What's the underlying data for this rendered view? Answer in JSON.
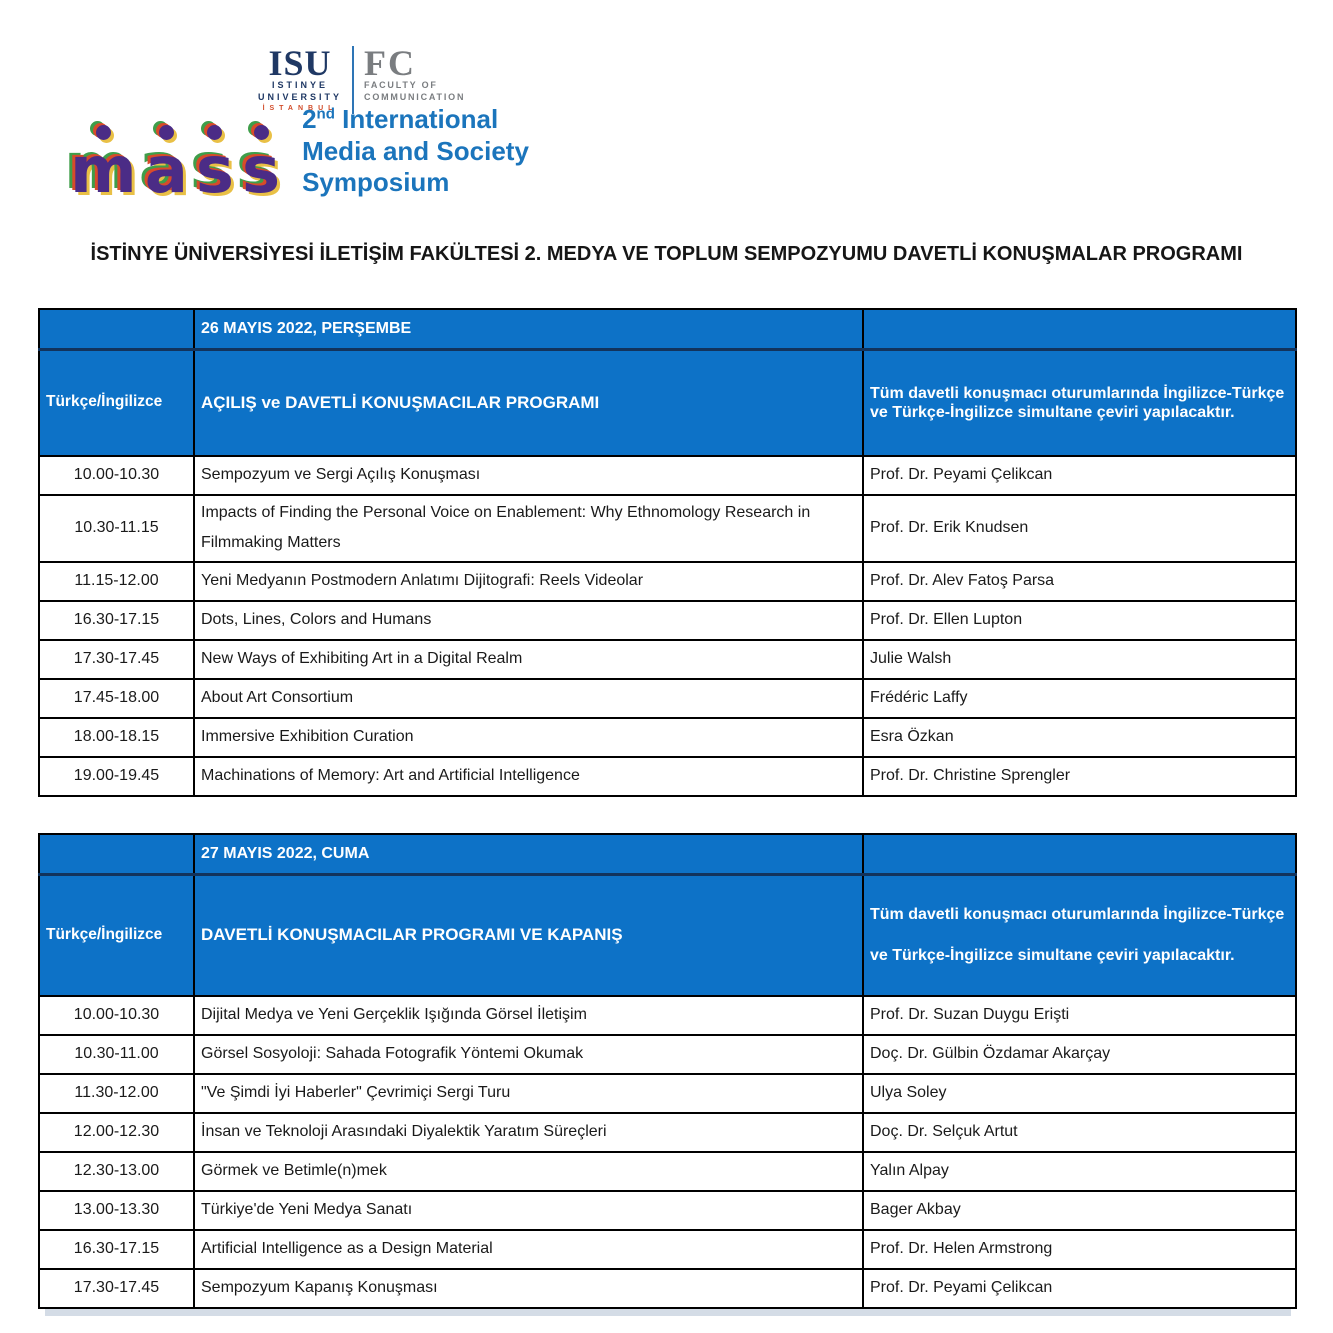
{
  "colors": {
    "table_header_blue": "#0d72c7",
    "header_divider_navy": "#12335c",
    "brand_purple": "#4b2c86",
    "brand_red": "#d84b2a",
    "brand_green": "#3f9e4a",
    "brand_yellow": "#e9c046",
    "symposium_blue": "#1b75bc",
    "isu_navy": "#1f3864",
    "fc_gray": "#7a7d80",
    "istanbul_red": "#d14b28"
  },
  "header": {
    "isu": {
      "acronym": "ISU",
      "line1": "ISTINYE",
      "line2": "UNIVERSITY",
      "line3": "İSTANBUL"
    },
    "fc": {
      "acronym": "FC",
      "line1": "FACULTY OF",
      "line2": "COMMUNICATION"
    },
    "mass_letters": [
      "m",
      "a",
      "s",
      "s"
    ],
    "symposium": {
      "ordinal": "2",
      "ordinal_suffix": "nd",
      "line1_rest": " International",
      "line2": "Media and Society",
      "line3": "Symposium"
    }
  },
  "title": "İSTİNYE ÜNİVERSİYESİ İLETİŞİM FAKÜLTESİ 2. MEDYA VE TOPLUM SEMPOZYUMU DAVETLİ KONUŞMALAR PROGRAMI",
  "tables": [
    {
      "date_header": "26 MAYIS 2022, PERŞEMBE",
      "language_label": "Türkçe/İngilizce",
      "program_label": "AÇILIŞ ve DAVETLİ KONUŞMACILAR PROGRAMI",
      "note": "Tüm davetli konuşmacı oturumlarında İngilizce-Türkçe ve Türkçe-İngilizce simultane çeviri yapılacaktır.",
      "rows": [
        {
          "time": "10.00-10.30",
          "session": "Sempozyum ve Sergi Açılış Konuşması",
          "speaker": "Prof. Dr. Peyami Çelikcan"
        },
        {
          "time": "10.30-11.15",
          "session": "Impacts of Finding the Personal Voice on Enablement: Why Ethnomology Research in Filmmaking Matters",
          "speaker": "Prof. Dr. Erik Knudsen"
        },
        {
          "time": "11.15-12.00",
          "session": "Yeni Medyanın Postmodern Anlatımı Dijitografi: Reels Videolar",
          "speaker": "Prof. Dr. Alev Fatoş Parsa"
        },
        {
          "time": "16.30-17.15",
          "session": "Dots, Lines, Colors and Humans",
          "speaker": "Prof. Dr. Ellen Lupton"
        },
        {
          "time": "17.30-17.45",
          "session": "New Ways of Exhibiting Art in a Digital Realm",
          "speaker": "Julie Walsh"
        },
        {
          "time": "17.45-18.00",
          "session": "About Art Consortium",
          "speaker": "Frédéric Laffy"
        },
        {
          "time": "18.00-18.15",
          "session": "Immersive Exhibition Curation",
          "speaker": "Esra Özkan"
        },
        {
          "time": "19.00-19.45",
          "session": "Machinations of Memory: Art and Artificial Intelligence",
          "speaker": "Prof. Dr. Christine Sprengler"
        }
      ]
    },
    {
      "date_header": "27 MAYIS 2022, CUMA",
      "language_label": "Türkçe/İngilizce",
      "program_label": "DAVETLİ KONUŞMACILAR PROGRAMI VE KAPANIŞ",
      "note": "Tüm davetli konuşmacı oturumlarında İngilizce-Türkçe ve Türkçe-İngilizce simultane çeviri yapılacaktır.",
      "rows": [
        {
          "time": "10.00-10.30",
          "session": "Dijital Medya ve Yeni Gerçeklik Işığında Görsel İletişim",
          "speaker": "Prof. Dr. Suzan Duygu Erişti"
        },
        {
          "time": "10.30-11.00",
          "session": "Görsel Sosyoloji: Sahada Fotografik Yöntemi Okumak",
          "speaker": "Doç. Dr. Gülbin Özdamar Akarçay"
        },
        {
          "time": "11.30-12.00",
          "session": "\"Ve Şimdi İyi Haberler\" Çevrimiçi Sergi Turu",
          "speaker": "Ulya Soley"
        },
        {
          "time": "12.00-12.30",
          "session": "İnsan ve Teknoloji Arasındaki Diyalektik Yaratım Süreçleri",
          "speaker": "Doç. Dr. Selçuk Artut"
        },
        {
          "time": "12.30-13.00",
          "session": "Görmek ve Betimle(n)mek",
          "speaker": "Yalın Alpay"
        },
        {
          "time": "13.00-13.30",
          "session": "Türkiye'de Yeni Medya Sanatı",
          "speaker": "Bager Akbay"
        },
        {
          "time": "16.30-17.15",
          "session": "Artificial Intelligence as a Design Material",
          "speaker": "Prof. Dr. Helen Armstrong"
        },
        {
          "time": "17.30-17.45",
          "session": "Sempozyum Kapanış Konuşması",
          "speaker": "Prof. Dr. Peyami Çelikcan"
        }
      ]
    }
  ]
}
